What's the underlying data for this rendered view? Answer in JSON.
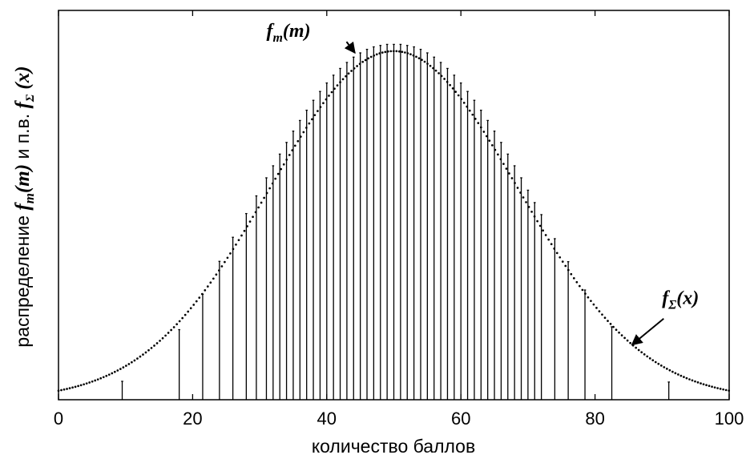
{
  "chart_data": {
    "type": "bar",
    "subtype": "stem-with-dotted-density",
    "title": "",
    "xlabel": "количество  баллов",
    "ylabel": {
      "prefix": "распределение ",
      "fm": "f",
      "fm_sub": "m",
      "fm_arg": "(m)",
      "middle": " и п.в. ",
      "fs": "f",
      "fs_sub": "Σ",
      "fs_arg": " (x)"
    },
    "xlim": [
      0,
      100
    ],
    "ylim": [
      0,
      1.1
    ],
    "xticks": [
      0,
      20,
      40,
      60,
      80,
      100
    ],
    "yticks_visible": false,
    "grid": false,
    "density": {
      "name": "fΣ(x)",
      "style": "dotted",
      "mean": 50,
      "sd": 18.5,
      "peak": 0.985
    },
    "stems": {
      "name": "fm(m)",
      "x": [
        9.5,
        18,
        21.5,
        24,
        26,
        28,
        29.5,
        31,
        32,
        33,
        34,
        35,
        36,
        37,
        38,
        39,
        40,
        41,
        42,
        43,
        44,
        45,
        46,
        47,
        48,
        49,
        50,
        51,
        52,
        53,
        54,
        55,
        56,
        57,
        58,
        59,
        60,
        61,
        62,
        63,
        64,
        65,
        66,
        67,
        68,
        69,
        70,
        71,
        72,
        74,
        76,
        78.5,
        82.5,
        91
      ],
      "values": [
        0.052,
        0.198,
        0.298,
        0.391,
        0.459,
        0.526,
        0.576,
        0.627,
        0.661,
        0.694,
        0.727,
        0.759,
        0.789,
        0.818,
        0.846,
        0.871,
        0.895,
        0.917,
        0.936,
        0.953,
        0.968,
        0.98,
        0.99,
        0.997,
        1.001,
        1.004,
        1.004,
        1.004,
        1.001,
        0.997,
        0.99,
        0.98,
        0.968,
        0.953,
        0.936,
        0.917,
        0.895,
        0.871,
        0.846,
        0.818,
        0.789,
        0.759,
        0.727,
        0.694,
        0.661,
        0.627,
        0.592,
        0.557,
        0.523,
        0.455,
        0.39,
        0.31,
        0.206,
        0.05
      ]
    },
    "annotations": [
      {
        "name": "fm-annotation",
        "f": "f",
        "sub": "m",
        "arg": "(m)",
        "x": 31,
        "y": 1.025,
        "arrow_to": [
          44.2,
          0.98
        ]
      },
      {
        "name": "fs-annotation",
        "f": "f",
        "sub": "Σ",
        "arg": "(x)",
        "x": 90,
        "y": 0.27,
        "arrow_to": [
          85.5,
          0.155
        ]
      }
    ]
  }
}
